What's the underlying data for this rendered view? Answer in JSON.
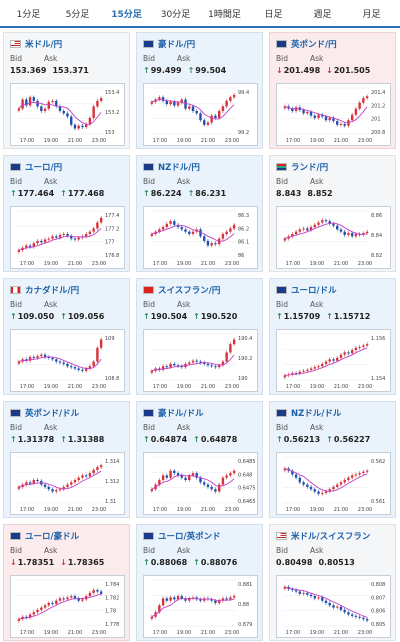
{
  "tabs": [
    "1分足",
    "5分足",
    "15分足",
    "30分足",
    "1時間足",
    "日足",
    "週足",
    "月足"
  ],
  "active_tab": 2,
  "cards": [
    {
      "pair": "米ドル/円",
      "flag": "us",
      "bid": "153.369",
      "ask": "153.371",
      "dir": "flat",
      "yticks": [
        "153.4",
        "153.2",
        "153"
      ],
      "series": [
        0.55,
        0.75,
        0.62,
        0.8,
        0.72,
        0.6,
        0.5,
        0.55,
        0.7,
        0.72,
        0.6,
        0.5,
        0.45,
        0.38,
        0.2,
        0.12,
        0.18,
        0.15,
        0.22,
        0.35,
        0.6,
        0.72,
        0.78
      ]
    },
    {
      "pair": "豪ドル/円",
      "flag": "au",
      "bid": "99.499",
      "ask": "99.504",
      "dir": "up",
      "yticks": [
        "99.4",
        "99.2"
      ],
      "series": [
        0.7,
        0.75,
        0.8,
        0.72,
        0.65,
        0.7,
        0.62,
        0.68,
        0.75,
        0.55,
        0.6,
        0.5,
        0.45,
        0.3,
        0.2,
        0.25,
        0.4,
        0.35,
        0.5,
        0.6,
        0.72,
        0.8,
        0.85
      ]
    },
    {
      "pair": "英ポンド/円",
      "flag": "uk",
      "bid": "201.498",
      "ask": "201.505",
      "dir": "down",
      "yticks": [
        "201.4",
        "201.2",
        "201",
        "200.8"
      ],
      "series": [
        0.6,
        0.55,
        0.5,
        0.58,
        0.52,
        0.45,
        0.48,
        0.4,
        0.35,
        0.42,
        0.38,
        0.3,
        0.35,
        0.28,
        0.2,
        0.22,
        0.18,
        0.3,
        0.42,
        0.55,
        0.68,
        0.78,
        0.82
      ]
    },
    {
      "pair": "ユーロ/円",
      "flag": "eu",
      "bid": "177.464",
      "ask": "177.468",
      "dir": "up",
      "yticks": [
        "177.4",
        "177.2",
        "177",
        "176.8"
      ],
      "series": [
        0.15,
        0.2,
        0.25,
        0.22,
        0.3,
        0.35,
        0.32,
        0.38,
        0.4,
        0.45,
        0.42,
        0.48,
        0.5,
        0.46,
        0.4,
        0.38,
        0.42,
        0.45,
        0.5,
        0.55,
        0.62,
        0.75,
        0.85
      ]
    },
    {
      "pair": "NZドル/円",
      "flag": "nz",
      "bid": "86.224",
      "ask": "86.231",
      "dir": "up",
      "yticks": [
        "86.3",
        "86.2",
        "86.1",
        "86"
      ],
      "series": [
        0.5,
        0.55,
        0.6,
        0.65,
        0.72,
        0.78,
        0.7,
        0.65,
        0.6,
        0.55,
        0.5,
        0.55,
        0.6,
        0.45,
        0.35,
        0.25,
        0.3,
        0.28,
        0.4,
        0.5,
        0.55,
        0.62,
        0.7
      ]
    },
    {
      "pair": "ランド/円",
      "flag": "za",
      "bid": "8.843",
      "ask": "8.852",
      "dir": "flat",
      "yticks": [
        "8.86",
        "8.84",
        "8.82"
      ],
      "series": [
        0.4,
        0.45,
        0.5,
        0.55,
        0.6,
        0.62,
        0.58,
        0.65,
        0.7,
        0.75,
        0.8,
        0.78,
        0.72,
        0.68,
        0.6,
        0.55,
        0.48,
        0.52,
        0.45,
        0.5,
        0.48,
        0.52,
        0.55
      ]
    },
    {
      "pair": "カナダドル/円",
      "flag": "ca",
      "bid": "109.050",
      "ask": "109.056",
      "dir": "up",
      "yticks": [
        "109",
        "108.8"
      ],
      "series": [
        0.4,
        0.45,
        0.42,
        0.5,
        0.48,
        0.52,
        0.55,
        0.5,
        0.48,
        0.45,
        0.4,
        0.38,
        0.35,
        0.3,
        0.28,
        0.25,
        0.22,
        0.2,
        0.25,
        0.3,
        0.4,
        0.7,
        0.88
      ]
    },
    {
      "pair": "スイスフラン/円",
      "flag": "ch",
      "bid": "190.504",
      "ask": "190.520",
      "dir": "up",
      "yticks": [
        "190.4",
        "190.2",
        "190"
      ],
      "series": [
        0.2,
        0.25,
        0.22,
        0.3,
        0.28,
        0.35,
        0.32,
        0.3,
        0.28,
        0.35,
        0.38,
        0.42,
        0.4,
        0.38,
        0.35,
        0.32,
        0.3,
        0.28,
        0.32,
        0.4,
        0.6,
        0.78,
        0.88
      ]
    },
    {
      "pair": "ユーロ/ドル",
      "flag": "eu",
      "bid": "1.15709",
      "ask": "1.15712",
      "dir": "up",
      "yticks": [
        "1.156",
        "1.154"
      ],
      "series": [
        0.1,
        0.12,
        0.15,
        0.14,
        0.18,
        0.2,
        0.22,
        0.25,
        0.28,
        0.3,
        0.35,
        0.4,
        0.45,
        0.42,
        0.48,
        0.55,
        0.6,
        0.58,
        0.65,
        0.7,
        0.72,
        0.75,
        0.78
      ]
    },
    {
      "pair": "英ポンド/ドル",
      "flag": "uk",
      "bid": "1.31378",
      "ask": "1.31388",
      "dir": "up",
      "yticks": [
        "1.314",
        "1.312",
        "1.31"
      ],
      "series": [
        0.35,
        0.4,
        0.45,
        0.42,
        0.5,
        0.48,
        0.4,
        0.35,
        0.3,
        0.25,
        0.28,
        0.3,
        0.35,
        0.4,
        0.45,
        0.5,
        0.55,
        0.6,
        0.58,
        0.65,
        0.72,
        0.78,
        0.82
      ]
    },
    {
      "pair": "豪ドル/ドル",
      "flag": "au",
      "bid": "0.64874",
      "ask": "0.64878",
      "dir": "up",
      "yticks": [
        "0.6485",
        "0.648",
        "0.6475",
        "0.6465"
      ],
      "series": [
        0.3,
        0.4,
        0.5,
        0.6,
        0.55,
        0.7,
        0.65,
        0.6,
        0.55,
        0.5,
        0.6,
        0.65,
        0.55,
        0.45,
        0.4,
        0.35,
        0.3,
        0.25,
        0.4,
        0.55,
        0.6,
        0.65,
        0.7
      ]
    },
    {
      "pair": "NZドル/ドル",
      "flag": "nz",
      "bid": "0.56213",
      "ask": "0.56227",
      "dir": "up",
      "yticks": [
        "0.562",
        "0.561"
      ],
      "series": [
        0.75,
        0.7,
        0.62,
        0.55,
        0.45,
        0.4,
        0.35,
        0.3,
        0.25,
        0.2,
        0.22,
        0.25,
        0.3,
        0.35,
        0.4,
        0.45,
        0.5,
        0.55,
        0.6,
        0.62,
        0.65,
        0.68,
        0.7
      ]
    },
    {
      "pair": "ユーロ/豪ドル",
      "flag": "eu",
      "bid": "1.78351",
      "ask": "1.78365",
      "dir": "down",
      "yticks": [
        "1.784",
        "1.782",
        "1.78",
        "1.778"
      ],
      "series": [
        0.15,
        0.2,
        0.18,
        0.25,
        0.3,
        0.35,
        0.4,
        0.45,
        0.5,
        0.48,
        0.55,
        0.6,
        0.58,
        0.62,
        0.65,
        0.6,
        0.55,
        0.58,
        0.65,
        0.72,
        0.78,
        0.75,
        0.7
      ]
    },
    {
      "pair": "ユーロ/英ポンド",
      "flag": "eu",
      "bid": "0.88068",
      "ask": "0.88076",
      "dir": "up",
      "yticks": [
        "0.881",
        "0.88",
        "0.879"
      ],
      "series": [
        0.2,
        0.3,
        0.45,
        0.6,
        0.55,
        0.62,
        0.58,
        0.65,
        0.6,
        0.55,
        0.6,
        0.62,
        0.58,
        0.55,
        0.6,
        0.58,
        0.55,
        0.5,
        0.55,
        0.6,
        0.58,
        0.62,
        0.65
      ]
    },
    {
      "pair": "米ドル/スイスフラン",
      "flag": "us",
      "bid": "0.80498",
      "ask": "0.80513",
      "dir": "flat",
      "yticks": [
        "0.808",
        "0.807",
        "0.806",
        "0.805"
      ],
      "series": [
        0.85,
        0.8,
        0.78,
        0.75,
        0.7,
        0.72,
        0.68,
        0.65,
        0.6,
        0.62,
        0.55,
        0.5,
        0.45,
        0.4,
        0.42,
        0.35,
        0.3,
        0.25,
        0.22,
        0.2,
        0.18,
        0.15,
        0.12
      ]
    }
  ],
  "bid_label": "Bid",
  "ask_label": "Ask",
  "xticks": [
    "17:00",
    "19:00",
    "21:00",
    "23:00"
  ],
  "colors": {
    "up_candle": "#d6323a",
    "down_candle": "#1f4fb0",
    "ma": "#c43fc3",
    "accent": "#2a6fb2"
  }
}
